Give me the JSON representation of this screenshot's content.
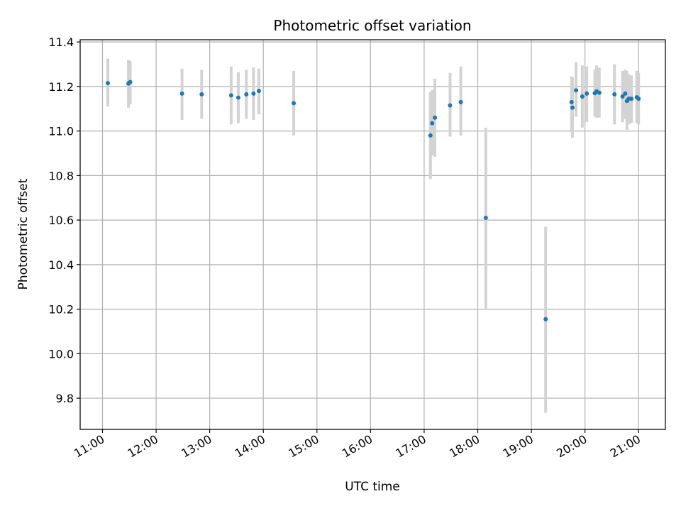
{
  "chart_data": {
    "type": "scatter",
    "title": "Photometric offset variation",
    "xlabel": "UTC time",
    "ylabel": "Photometric offset",
    "xlim": [
      "10:35",
      "21:30"
    ],
    "ylim": [
      9.66,
      11.41
    ],
    "x_ticks": [
      "11:00",
      "12:00",
      "13:00",
      "14:00",
      "15:00",
      "16:00",
      "17:00",
      "18:00",
      "19:00",
      "20:00",
      "21:00"
    ],
    "y_ticks": [
      9.8,
      10.0,
      10.2,
      10.4,
      10.6,
      10.8,
      11.0,
      11.2,
      11.4
    ],
    "y_tick_labels": [
      "9.8",
      "10.0",
      "10.2",
      "10.4",
      "10.6",
      "10.8",
      "11.0",
      "11.2",
      "11.4"
    ],
    "grid": true,
    "colors": {
      "point": "#1f77b4",
      "errorbar": "#d3d3d3",
      "grid": "#b0b0b0"
    },
    "points": [
      {
        "t": "11:06",
        "y": 11.215,
        "lo": 11.11,
        "hi": 11.325
      },
      {
        "t": "11:29",
        "y": 11.213,
        "lo": 11.105,
        "hi": 11.32
      },
      {
        "t": "11:31",
        "y": 11.22,
        "lo": 11.12,
        "hi": 11.315
      },
      {
        "t": "12:29",
        "y": 11.168,
        "lo": 11.05,
        "hi": 11.28
      },
      {
        "t": "12:51",
        "y": 11.165,
        "lo": 11.055,
        "hi": 11.275
      },
      {
        "t": "13:24",
        "y": 11.16,
        "lo": 11.03,
        "hi": 11.29
      },
      {
        "t": "13:32",
        "y": 11.15,
        "lo": 11.035,
        "hi": 11.265
      },
      {
        "t": "13:41",
        "y": 11.165,
        "lo": 11.055,
        "hi": 11.275
      },
      {
        "t": "13:49",
        "y": 11.168,
        "lo": 11.05,
        "hi": 11.285
      },
      {
        "t": "13:55",
        "y": 11.18,
        "lo": 11.075,
        "hi": 11.28
      },
      {
        "t": "14:34",
        "y": 11.125,
        "lo": 10.98,
        "hi": 11.27
      },
      {
        "t": "17:07",
        "y": 10.98,
        "lo": 10.785,
        "hi": 11.175
      },
      {
        "t": "17:09",
        "y": 11.035,
        "lo": 10.89,
        "hi": 11.185
      },
      {
        "t": "17:12",
        "y": 11.06,
        "lo": 10.885,
        "hi": 11.235
      },
      {
        "t": "17:29",
        "y": 11.115,
        "lo": 10.975,
        "hi": 11.26
      },
      {
        "t": "17:41",
        "y": 11.13,
        "lo": 10.98,
        "hi": 11.29
      },
      {
        "t": "18:09",
        "y": 10.61,
        "lo": 10.2,
        "hi": 11.015
      },
      {
        "t": "19:16",
        "y": 10.155,
        "lo": 9.735,
        "hi": 10.57
      },
      {
        "t": "19:45",
        "y": 11.13,
        "lo": 10.995,
        "hi": 11.245
      },
      {
        "t": "19:46",
        "y": 11.105,
        "lo": 10.97,
        "hi": 11.24
      },
      {
        "t": "19:50",
        "y": 11.183,
        "lo": 11.065,
        "hi": 11.31
      },
      {
        "t": "19:57",
        "y": 11.155,
        "lo": 11.015,
        "hi": 11.295
      },
      {
        "t": "20:02",
        "y": 11.168,
        "lo": 11.04,
        "hi": 11.29
      },
      {
        "t": "20:11",
        "y": 11.17,
        "lo": 11.065,
        "hi": 11.275
      },
      {
        "t": "20:13",
        "y": 11.178,
        "lo": 11.06,
        "hi": 11.295
      },
      {
        "t": "20:16",
        "y": 11.172,
        "lo": 11.06,
        "hi": 11.285
      },
      {
        "t": "20:33",
        "y": 11.165,
        "lo": 11.03,
        "hi": 11.3
      },
      {
        "t": "20:42",
        "y": 11.155,
        "lo": 11.04,
        "hi": 11.27
      },
      {
        "t": "20:45",
        "y": 11.168,
        "lo": 11.055,
        "hi": 11.275
      },
      {
        "t": "20:47",
        "y": 11.135,
        "lo": 11.005,
        "hi": 11.27
      },
      {
        "t": "20:49",
        "y": 11.145,
        "lo": 11.03,
        "hi": 11.255
      },
      {
        "t": "20:52",
        "y": 11.145,
        "lo": 11.035,
        "hi": 11.25
      },
      {
        "t": "20:58",
        "y": 11.152,
        "lo": 11.035,
        "hi": 11.27
      },
      {
        "t": "21:00",
        "y": 11.145,
        "lo": 11.03,
        "hi": 11.26
      }
    ]
  }
}
